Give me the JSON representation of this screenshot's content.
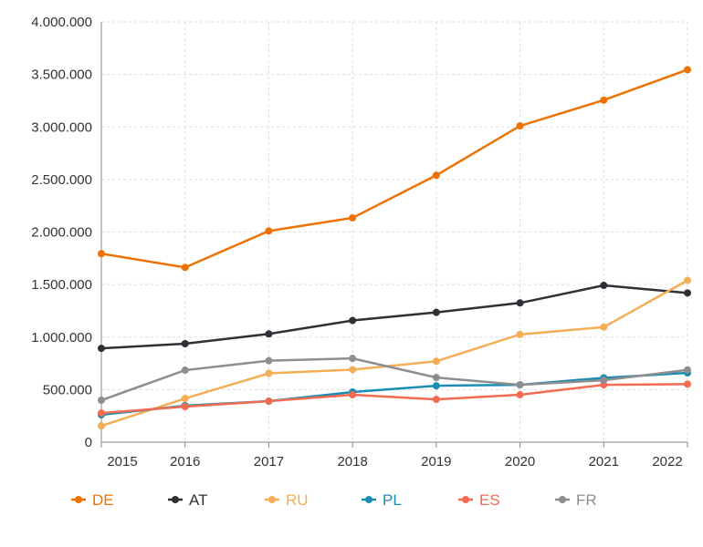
{
  "chart_data": {
    "type": "line",
    "x": [
      2015,
      2016,
      2017,
      2018,
      2019,
      2020,
      2021,
      2022
    ],
    "ylim": [
      0,
      4000000
    ],
    "yticks": [
      "0",
      "500.000",
      "1.000.000",
      "1.500.000",
      "2.000.000",
      "2.500.000",
      "3.000.000",
      "3.500.000",
      "4.000.000"
    ],
    "grid": true,
    "legend": "bottom",
    "series": [
      {
        "name": "DE",
        "color": "#ee7203",
        "values": [
          1794000,
          1663000,
          2010000,
          2135000,
          2540000,
          3010000,
          3255000,
          3545000
        ]
      },
      {
        "name": "AT",
        "color": "#2f2f36",
        "values": [
          893000,
          937000,
          1030000,
          1158000,
          1235000,
          1325000,
          1492000,
          1420000
        ]
      },
      {
        "name": "RU",
        "color": "#f4ae55",
        "values": [
          155000,
          416000,
          655000,
          690000,
          770000,
          1025000,
          1095000,
          1540000
        ]
      },
      {
        "name": "PL",
        "color": "#1b8db5",
        "values": [
          260000,
          347000,
          390000,
          477000,
          537000,
          546000,
          612000,
          659000
        ]
      },
      {
        "name": "ES",
        "color": "#f36b50",
        "values": [
          277000,
          338000,
          390000,
          451000,
          407000,
          451000,
          546000,
          552000
        ]
      },
      {
        "name": "FR",
        "color": "#8e8e8e",
        "values": [
          399000,
          685000,
          775000,
          797000,
          615000,
          546000,
          589000,
          688000
        ]
      }
    ]
  }
}
